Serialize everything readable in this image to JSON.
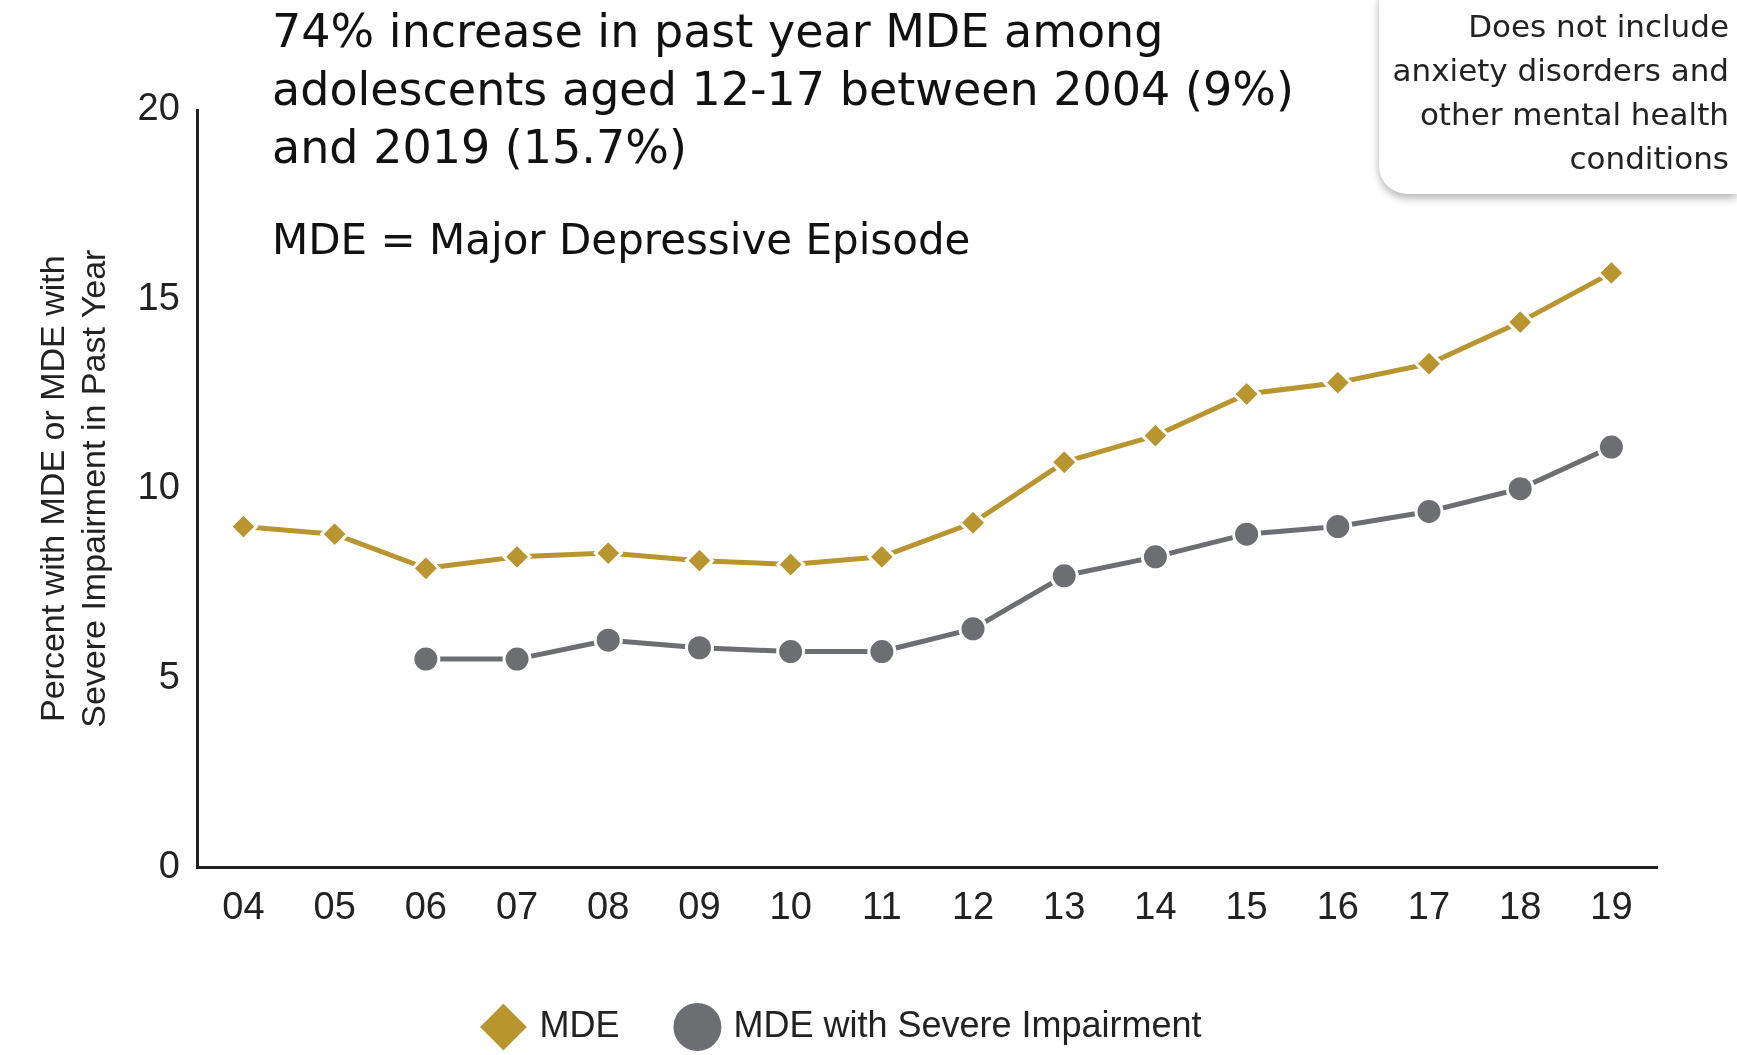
{
  "chart_data": {
    "type": "line",
    "title": "74% increase in past year MDE among adolescents aged 12-17 between 2004 (9%) and 2019 (15.7%)",
    "subtitle": "MDE = Major Depressive Episode",
    "ylabel": "Percent with MDE or MDE with Severe Impairment in Past Year",
    "annotations": [
      "Does not include anxiety disorders and other mental health conditions"
    ],
    "categories": [
      "04",
      "05",
      "06",
      "07",
      "08",
      "09",
      "10",
      "11",
      "12",
      "13",
      "14",
      "15",
      "16",
      "17",
      "18",
      "19"
    ],
    "series": [
      {
        "name": "MDE",
        "color": "#b8952e",
        "marker": "diamond",
        "values": [
          9.0,
          8.8,
          7.9,
          8.2,
          8.3,
          8.1,
          8.0,
          8.2,
          9.1,
          10.7,
          11.4,
          12.5,
          12.8,
          13.3,
          14.4,
          15.7
        ]
      },
      {
        "name": "MDE with Severe Impairment",
        "color": "#6d6e71",
        "marker": "circle",
        "values": [
          null,
          null,
          5.5,
          5.5,
          6.0,
          5.8,
          5.7,
          5.7,
          6.3,
          7.7,
          8.2,
          8.8,
          9.0,
          9.4,
          10.0,
          11.1
        ]
      }
    ],
    "ylim": [
      0,
      20
    ],
    "yticks": [
      0,
      5,
      10,
      15,
      20
    ],
    "grid": false,
    "legend": "bottom",
    "line_style": "solid"
  }
}
